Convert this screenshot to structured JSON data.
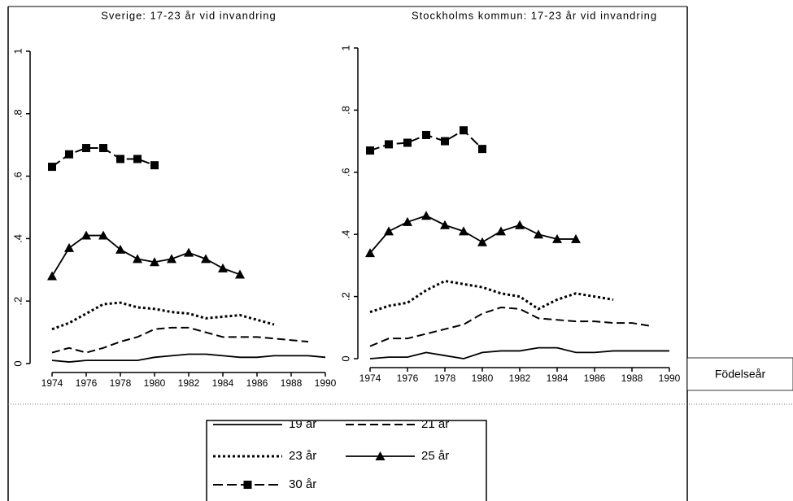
{
  "chart_data": [
    {
      "type": "line",
      "title": "Sverige: 17-23 år vid invandring",
      "x": [
        1974,
        1975,
        1976,
        1977,
        1978,
        1979,
        1980,
        1981,
        1982,
        1983,
        1984,
        1985,
        1986,
        1987,
        1988,
        1989,
        1990
      ],
      "xlim": [
        1974,
        1990
      ],
      "xticks": [
        1974,
        1976,
        1978,
        1980,
        1982,
        1984,
        1986,
        1988,
        1990
      ],
      "ylim": [
        0,
        1
      ],
      "yticks": [
        {
          "value": 0,
          "label": "0"
        },
        {
          "value": 0.2,
          "label": ".2"
        },
        {
          "value": 0.4,
          "label": ".4"
        },
        {
          "value": 0.6,
          "label": ".6"
        },
        {
          "value": 0.8,
          "label": ".8"
        },
        {
          "value": 1,
          "label": "1"
        }
      ],
      "series": [
        {
          "name": "19 år",
          "color": "#000000",
          "dash": "solid",
          "marker": null,
          "values": [
            0.01,
            0.005,
            0.01,
            0.01,
            0.01,
            0.01,
            0.02,
            0.025,
            0.03,
            0.03,
            0.025,
            0.02,
            0.02,
            0.025,
            0.025,
            0.025,
            0.02
          ]
        },
        {
          "name": "21 år",
          "color": "#000000",
          "dash": "dashed",
          "marker": null,
          "values": [
            0.035,
            0.05,
            0.035,
            0.05,
            0.07,
            0.085,
            0.11,
            0.115,
            0.115,
            0.1,
            0.085,
            0.085,
            0.085,
            0.08,
            0.075,
            0.07,
            null
          ]
        },
        {
          "name": "23 år",
          "color": "#000000",
          "dash": "dotted",
          "marker": null,
          "values": [
            0.11,
            0.13,
            0.16,
            0.19,
            0.195,
            0.18,
            0.175,
            0.165,
            0.16,
            0.145,
            0.15,
            0.155,
            0.14,
            0.125,
            null,
            null,
            null
          ]
        },
        {
          "name": "25 år",
          "color": "#000000",
          "dash": "solid",
          "marker": "triangle",
          "values": [
            0.28,
            0.37,
            0.41,
            0.41,
            0.365,
            0.335,
            0.325,
            0.335,
            0.355,
            0.335,
            0.305,
            0.285,
            null,
            null,
            null,
            null,
            null
          ]
        },
        {
          "name": "30 år",
          "color": "#000000",
          "dash": "longdash",
          "marker": "square",
          "values": [
            0.63,
            0.67,
            0.69,
            0.69,
            0.655,
            0.655,
            0.635,
            null,
            null,
            null,
            null,
            null,
            null,
            null,
            null,
            null,
            null
          ]
        }
      ]
    },
    {
      "type": "line",
      "title": "Stockholms kommun: 17-23 år vid invandring",
      "xlabel": "Födelseår",
      "x": [
        1974,
        1975,
        1976,
        1977,
        1978,
        1979,
        1980,
        1981,
        1982,
        1983,
        1984,
        1985,
        1986,
        1987,
        1988,
        1989,
        1990
      ],
      "xlim": [
        1974,
        1990
      ],
      "xticks": [
        1974,
        1976,
        1978,
        1980,
        1982,
        1984,
        1986,
        1988,
        1990
      ],
      "ylim": [
        0,
        1
      ],
      "yticks": [
        {
          "value": 0,
          "label": "0"
        },
        {
          "value": 0.2,
          "label": ".2"
        },
        {
          "value": 0.4,
          "label": ".4"
        },
        {
          "value": 0.6,
          "label": ".6"
        },
        {
          "value": 0.8,
          "label": ".8"
        },
        {
          "value": 1,
          "label": "1"
        }
      ],
      "series": [
        {
          "name": "19 år",
          "color": "#000000",
          "dash": "solid",
          "marker": null,
          "values": [
            0,
            0.005,
            0.005,
            0.02,
            0.01,
            0,
            0.02,
            0.025,
            0.025,
            0.035,
            0.035,
            0.02,
            0.02,
            0.025,
            0.025,
            0.025,
            0.025
          ]
        },
        {
          "name": "21 år",
          "color": "#000000",
          "dash": "dashed",
          "marker": null,
          "values": [
            0.04,
            0.065,
            0.065,
            0.08,
            0.095,
            0.11,
            0.145,
            0.165,
            0.16,
            0.13,
            0.125,
            0.12,
            0.12,
            0.115,
            0.115,
            0.105,
            null
          ]
        },
        {
          "name": "23 år",
          "color": "#000000",
          "dash": "dotted",
          "marker": null,
          "values": [
            0.15,
            0.17,
            0.18,
            0.22,
            0.25,
            0.24,
            0.23,
            0.21,
            0.2,
            0.16,
            0.19,
            0.21,
            0.2,
            0.19,
            null,
            null,
            null
          ]
        },
        {
          "name": "25 år",
          "color": "#000000",
          "dash": "solid",
          "marker": "triangle",
          "values": [
            0.34,
            0.41,
            0.44,
            0.46,
            0.43,
            0.41,
            0.375,
            0.41,
            0.43,
            0.4,
            0.385,
            0.385,
            null,
            null,
            null,
            null,
            null
          ]
        },
        {
          "name": "30 år",
          "color": "#000000",
          "dash": "longdash",
          "marker": "square",
          "values": [
            0.67,
            0.69,
            0.695,
            0.72,
            0.7,
            0.735,
            0.675,
            null,
            null,
            null,
            null,
            null,
            null,
            null,
            null,
            null,
            null
          ]
        }
      ]
    }
  ]
}
